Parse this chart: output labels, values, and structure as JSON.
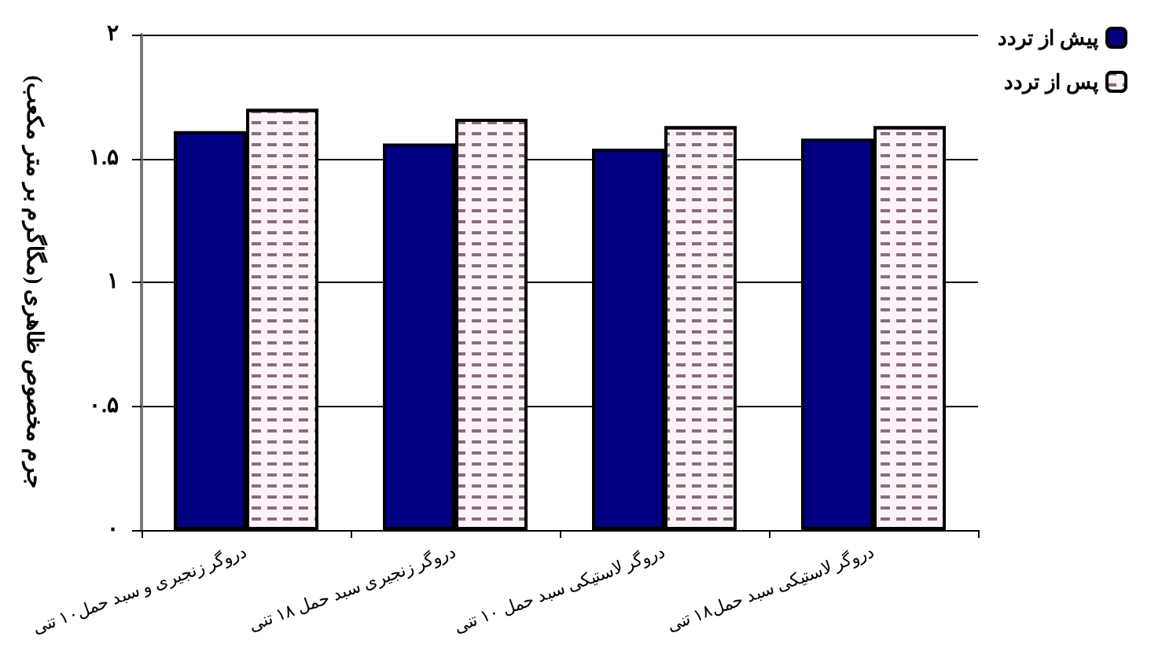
{
  "chart_data": {
    "type": "bar",
    "ylabel": "جرم مخصوص ظاهری (مگاگرم بر متر مکعب)",
    "categories": [
      "دروگر زنجیری و سبد حمل۱۰ تنی",
      "دروگر زنجیری سبد حمل ۱۸ تنی",
      "دروگر لاستیکی سبد حمل ۱۰ تنی",
      "دروگر لاستیکی سبد حمل۱۸ تنی"
    ],
    "series": [
      {
        "name": "پیش از تردد",
        "color": "#000080",
        "values": [
          1.61,
          1.56,
          1.54,
          1.58
        ]
      },
      {
        "name": "پس از تردد",
        "color": "#fbf3f8",
        "values": [
          1.7,
          1.66,
          1.63,
          1.63
        ]
      }
    ],
    "ylim": [
      0,
      2
    ],
    "yticks": [
      {
        "value": 0,
        "label": "۰"
      },
      {
        "value": 0.5,
        "label": "۰.۵"
      },
      {
        "value": 1,
        "label": "۱"
      },
      {
        "value": 1.5,
        "label": "۱.۵"
      },
      {
        "value": 2,
        "label": "۲"
      }
    ],
    "grid": "y",
    "legend": "top right"
  }
}
